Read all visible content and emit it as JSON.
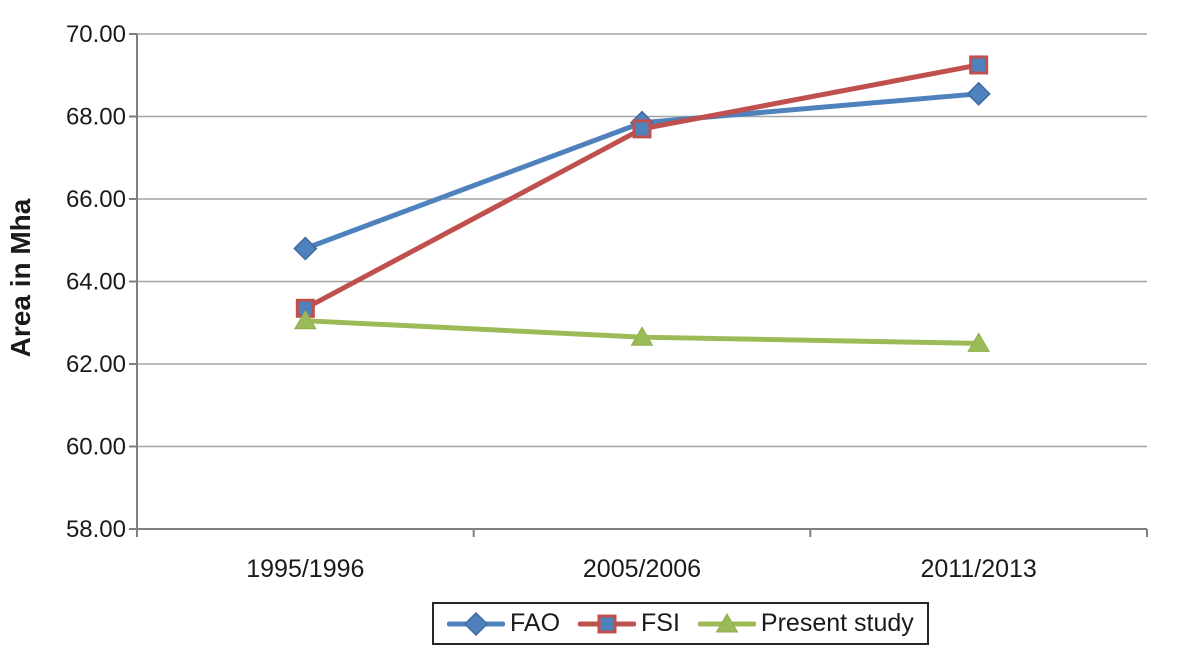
{
  "chart_data": {
    "type": "line",
    "title": "",
    "xlabel": "",
    "ylabel": "Area in Mha",
    "categories": [
      "1995/1996",
      "2005/2006",
      "2011/2013"
    ],
    "series": [
      {
        "name": "FAO",
        "values": [
          64.8,
          67.85,
          68.55
        ],
        "color": "#4f81bd",
        "marker": "diamond",
        "marker_fill": "#4f81bd",
        "marker_stroke": "#3e6aa0"
      },
      {
        "name": "FSI",
        "values": [
          63.35,
          67.7,
          69.25
        ],
        "color": "#c0504d",
        "marker": "square",
        "marker_fill": "#4f81bd",
        "marker_stroke": "#c0504d"
      },
      {
        "name": "Present study",
        "values": [
          63.05,
          62.65,
          62.5
        ],
        "color": "#9bbb59",
        "marker": "triangle",
        "marker_fill": "#9bbb59",
        "marker_stroke": "#8fae4d"
      }
    ],
    "ylim": [
      58,
      70
    ],
    "ytick_step": 2,
    "ytick_labels": [
      "58.00",
      "60.00",
      "62.00",
      "64.00",
      "66.00",
      "68.00",
      "70.00"
    ],
    "grid": true,
    "legend_position": "bottom"
  },
  "style": {
    "gridline_color": "#a3a3a3",
    "axis_color": "#7f7f7f",
    "text_color": "#1a1a1a",
    "line_width": 5
  }
}
